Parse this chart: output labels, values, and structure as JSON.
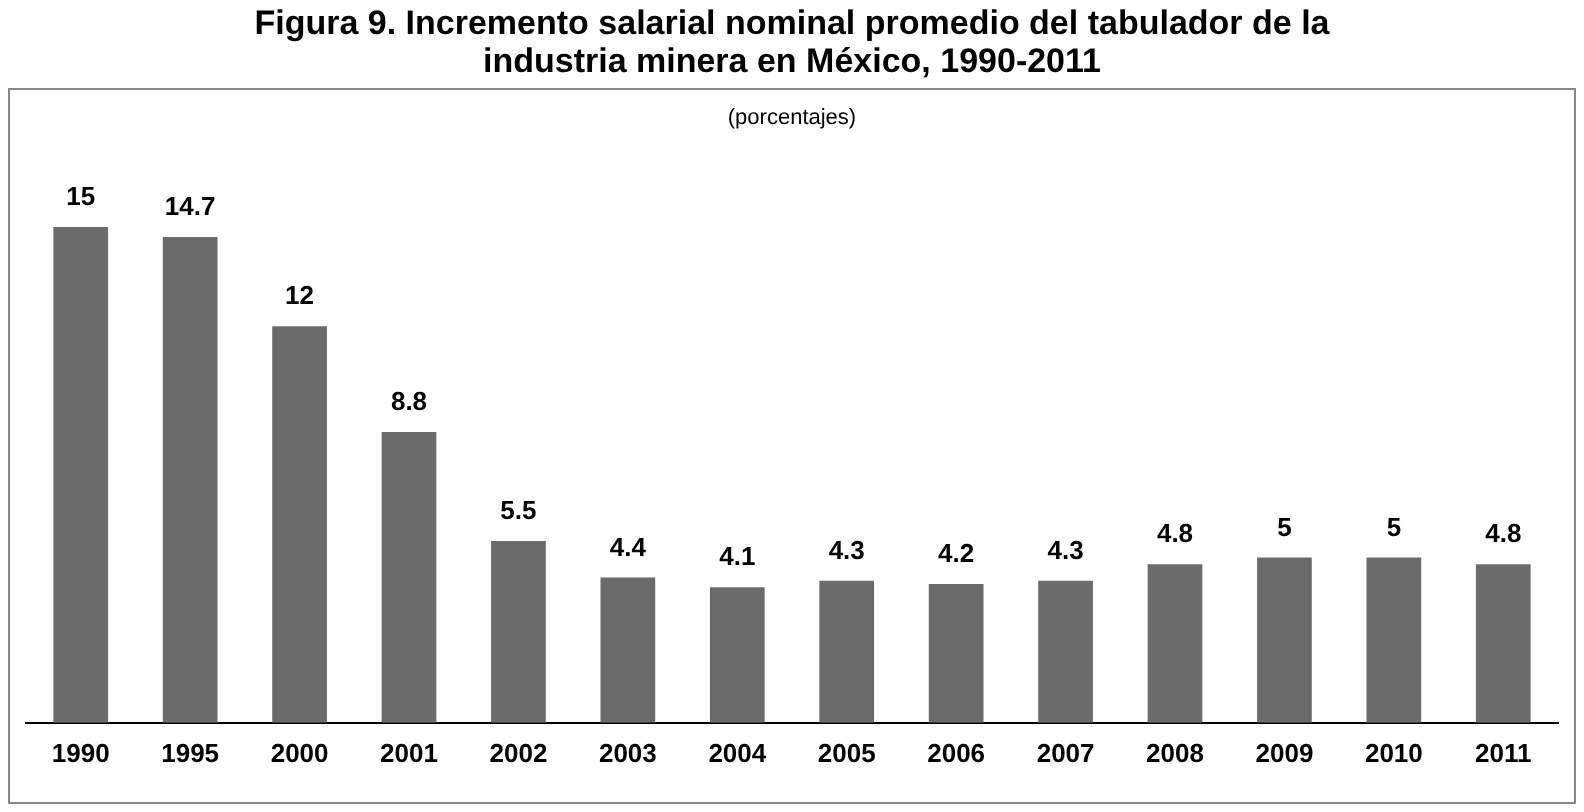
{
  "chart_data": {
    "type": "bar",
    "title": "Figura 9. Incremento salarial nominal promedio del tabulador de la industria minera en México, 1990-2011",
    "subtitle": "(porcentajes)",
    "categories": [
      "1990",
      "1995",
      "2000",
      "2001",
      "2002",
      "2003",
      "2004",
      "2005",
      "2006",
      "2007",
      "2008",
      "2009",
      "2010",
      "2011"
    ],
    "values": [
      15,
      14.7,
      12,
      8.8,
      5.5,
      4.4,
      4.1,
      4.3,
      4.2,
      4.3,
      4.8,
      5,
      5,
      4.8
    ],
    "color": "#6b6b6b",
    "data_labels": true,
    "grid": false,
    "legend": false
  }
}
